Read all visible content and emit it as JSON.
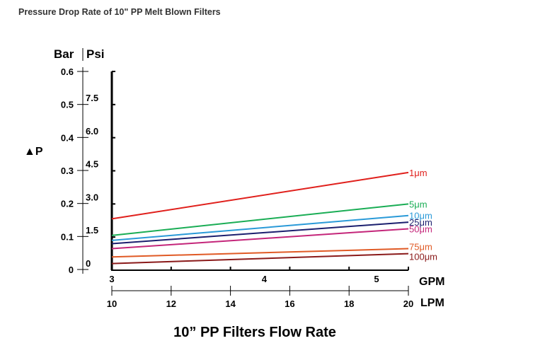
{
  "title": "Pressure Drop Rate of 10\" PP Melt Blown Filters",
  "chart_data": {
    "type": "line",
    "title": "10” PP Filters Flow Rate",
    "xlabel": "LPM",
    "xlabel_secondary": "GPM",
    "ylabel": "▲P",
    "ylabel_primary_unit": "Bar",
    "ylabel_secondary_unit": "Psi",
    "ylim": [
      0,
      0.6
    ],
    "xlim": [
      10,
      20
    ],
    "bar_ticks": [
      "0.6",
      "0.5",
      "0.4",
      "0.3",
      "0.2",
      "0.1",
      "0"
    ],
    "bar_tick_values": [
      0.6,
      0.5,
      0.4,
      0.3,
      0.2,
      0.1,
      0
    ],
    "psi_ticks": [
      "7.5",
      "6.0",
      "4.5",
      "3.0",
      "1.5",
      "0"
    ],
    "psi_tick_values": [
      7.5,
      6.0,
      4.5,
      3.0,
      1.5,
      0
    ],
    "lpm_ticks": [
      "10",
      "12",
      "14",
      "16",
      "18",
      "20"
    ],
    "lpm_tick_values": [
      10,
      12,
      14,
      16,
      18,
      20
    ],
    "gpm_ticks": [
      "3",
      "4",
      "5"
    ],
    "gpm_tick_values": [
      3,
      4,
      5
    ],
    "x": [
      10,
      20
    ],
    "series": [
      {
        "name": "1μm",
        "values": [
          0.155,
          0.295
        ],
        "color": "#e0201c"
      },
      {
        "name": "5μm",
        "values": [
          0.105,
          0.2
        ],
        "color": "#1aad55"
      },
      {
        "name": "10μm",
        "values": [
          0.09,
          0.165
        ],
        "color": "#2a9ad8"
      },
      {
        "name": "25μm",
        "values": [
          0.08,
          0.145
        ],
        "color": "#1b1f6e"
      },
      {
        "name": "50μm",
        "values": [
          0.065,
          0.125
        ],
        "color": "#c4267a"
      },
      {
        "name": "75μm",
        "values": [
          0.04,
          0.065
        ],
        "color": "#e05a25"
      },
      {
        "name": "100μm",
        "values": [
          0.02,
          0.05
        ],
        "color": "#8a1a1a"
      }
    ]
  }
}
